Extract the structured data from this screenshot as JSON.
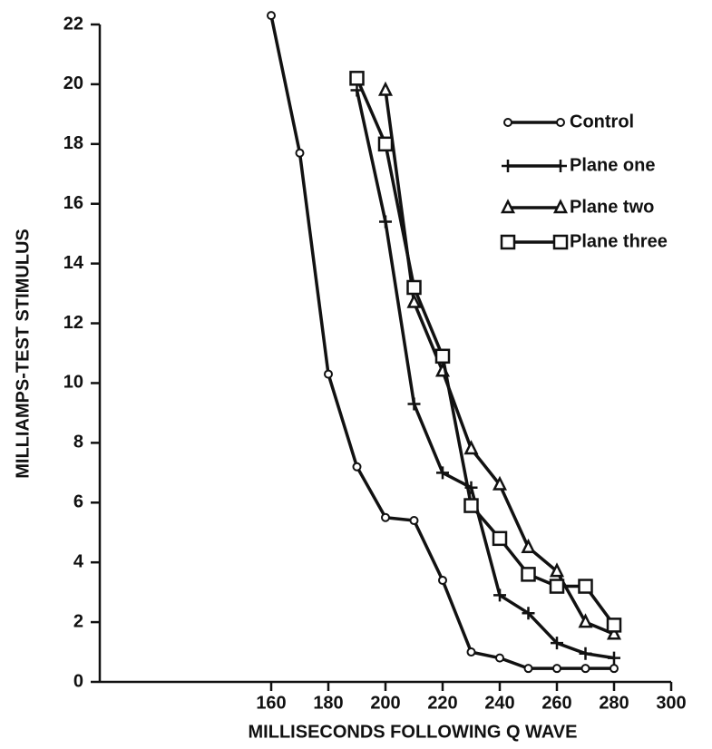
{
  "chart_data": {
    "type": "line",
    "x_label": "MILLISECONDS FOLLOWING Q WAVE",
    "y_label": "MILLIAMPS-TEST STIMULUS",
    "xlim": [
      100,
      300
    ],
    "xticks": [
      160,
      180,
      200,
      220,
      240,
      260,
      280,
      300
    ],
    "ylim": [
      0,
      22
    ],
    "yticks": [
      0,
      2,
      4,
      6,
      8,
      10,
      12,
      14,
      16,
      18,
      20,
      22
    ],
    "series": [
      {
        "name": "Control",
        "marker": "circle",
        "color": "#111111",
        "x": [
          160,
          170,
          180,
          190,
          200,
          210,
          220,
          230,
          240,
          250,
          260,
          270,
          280
        ],
        "values": [
          22.3,
          17.7,
          10.3,
          7.2,
          5.5,
          5.4,
          3.4,
          1.0,
          0.8,
          0.45,
          0.45,
          0.45,
          0.45
        ]
      },
      {
        "name": "Plane one",
        "marker": "plus",
        "color": "#111111",
        "x": [
          190,
          200,
          210,
          220,
          230,
          240,
          250,
          260,
          270,
          280
        ],
        "values": [
          19.8,
          15.4,
          9.3,
          7.0,
          6.5,
          2.9,
          2.3,
          1.3,
          0.95,
          0.8
        ]
      },
      {
        "name": "Plane two",
        "marker": "triangle",
        "color": "#111111",
        "x": [
          200,
          210,
          220,
          230,
          240,
          250,
          260,
          270,
          280
        ],
        "values": [
          19.8,
          12.7,
          10.4,
          7.8,
          6.6,
          4.5,
          3.7,
          2.0,
          1.6
        ]
      },
      {
        "name": "Plane three",
        "marker": "square",
        "color": "#111111",
        "x": [
          190,
          200,
          210,
          220,
          230,
          240,
          250,
          260,
          270,
          280
        ],
        "values": [
          20.2,
          18.0,
          13.2,
          10.9,
          5.9,
          4.8,
          3.6,
          3.2,
          3.2,
          1.9
        ]
      }
    ]
  }
}
